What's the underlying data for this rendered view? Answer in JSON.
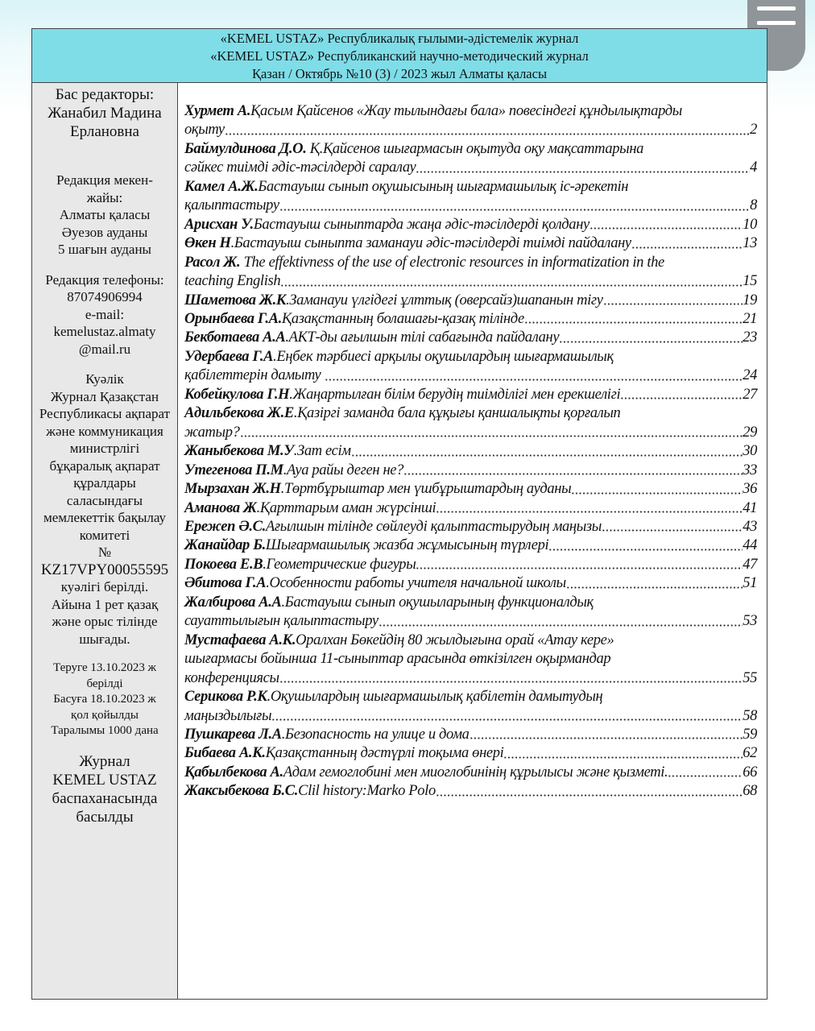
{
  "header": {
    "line1": "«KEMEL USTAZ» Республикалық ғылыми-әдістемелік журнал",
    "line2": "«KEMEL USTAZ» Республиканский научно-методический журнал",
    "line3": "Қазан / Октябрь  №10 (3) / 2023 жыл Алматы  қаласы"
  },
  "sidebar": {
    "editor": [
      "Бас редакторы:",
      "Жанабил Мадина",
      "Ерлановна"
    ],
    "address": [
      "Редакция мекен-",
      "жайы:",
      "Алматы қаласы",
      "Әуезов ауданы",
      "5 шағын ауданы"
    ],
    "contacts": [
      "Редакция телефоны:",
      "87074906994",
      "e-mail:",
      "kemelustaz.almaty",
      "@mail.ru"
    ],
    "certificate": [
      "Куәлік",
      "Журнал Қазақстан",
      "Республикасы ақпарат",
      "және коммуникация",
      "министрлігі",
      "бұқаралық ақпарат",
      "құралдары",
      "саласындағы",
      "мемлекеттік бақылау",
      "комитеті",
      "№",
      "KZ17VPY00055595",
      "куәлігі берілді.",
      "Айына 1 рет қазақ",
      "және орыс тілінде",
      "шығады."
    ],
    "print": [
      "Теруге 13.10.2023 ж",
      "берілді",
      "Басуға 18.10.2023 ж",
      "қол қойылды",
      "Таралымы 1000 дана"
    ],
    "printer": [
      "Журнал",
      "KEMEL USTAZ",
      "баспаханасында",
      "басылды"
    ]
  },
  "toc": [
    {
      "author": "Хурмет А.",
      "lines": [
        "Қасым Қайсенов «Жау тылындағы бала» повесіндегі құндылықтарды",
        "оқыту"
      ],
      "page": "2"
    },
    {
      "author": "Баймулдинова Д.О.",
      "lines": [
        " Қ.Қайсенов шығармасын оқытуда оқу мақсаттарына",
        "сәйкес тиімді әдіс-тәсілдерді саралау"
      ],
      "page": "4"
    },
    {
      "author": "Камел А.Ж.",
      "lines": [
        "Бастауыш сынып оқушысының шығармашылық іс-әрекетін",
        "қалыптастыру"
      ],
      "page": "8"
    },
    {
      "author": "Арисхан У.",
      "lines": [
        "Бастауыш сыныптарда жаңа әдіс-тәсілдерді қолдану"
      ],
      "page": "10"
    },
    {
      "author": "Өкен Н",
      "lines": [
        ".Бастауыш сыныпта заманауи әдіс-тәсілдерді тиімді пайдалану"
      ],
      "page": "13"
    },
    {
      "author": "Расол Ж.",
      "lines": [
        " The effektivness of the use of electronic resources in informatization in the",
        "teaching English"
      ],
      "page": "15"
    },
    {
      "author": "Шаметова Ж.К",
      "lines": [
        ".Заманауи үлгідегі ұлттық (оверсайз)шапанын тігу"
      ],
      "page": "19"
    },
    {
      "author": "Орынбаева Г.А.",
      "lines": [
        "Қазақстанның болашағы-қазақ тілінде"
      ],
      "page": "21"
    },
    {
      "author": "Бекботаева А.А",
      "lines": [
        ".АКТ-ды ағылшын тілі сабағында пайдалану"
      ],
      "page": "23"
    },
    {
      "author": "Удербаева Г.А",
      "lines": [
        ".Еңбек тәрбиесі арқылы оқушылардың шығармашылық",
        "қабілеттерін дамыту "
      ],
      "page": "24"
    },
    {
      "author": "Кобейкулова Г.Н",
      "lines": [
        ".Жаңартылған білім берудің тиімділігі мен ерекшелігі"
      ],
      "page": "27"
    },
    {
      "author": "Адильбекова Ж.Е",
      "lines": [
        ".Қазіргі заманда бала құқығы қаншалықты қорғалып",
        "жатыр?"
      ],
      "page": "29"
    },
    {
      "author": "Жаныбекова М.У",
      "lines": [
        ".Зат есім"
      ],
      "page": "30"
    },
    {
      "author": "Утегенова П.М",
      "lines": [
        ".Ауа райы деген не?"
      ],
      "page": "33"
    },
    {
      "author": "Мырзахан Ж.Н",
      "lines": [
        ".Төртбұрыштар мен үшбұрыштардың ауданы"
      ],
      "page": "36"
    },
    {
      "author": "Аманова Ж",
      "lines": [
        ".Қарттарым аман жүрсінші"
      ],
      "page": "41"
    },
    {
      "author": "Ережеп Ә.С.",
      "lines": [
        "Ағылшын тілінде сөйлеуді қалыптастырудың маңызы"
      ],
      "page": "43"
    },
    {
      "author": "Жанайдар Б.",
      "lines": [
        "Шығармашылық жазба жұмысының түрлері"
      ],
      "page": "44"
    },
    {
      "author": "Покоева Е.В",
      "lines": [
        ".Геометрические фигуры"
      ],
      "page": "47"
    },
    {
      "author": "Әбитова Г.А",
      "lines": [
        ".Особенности работы учителя начальной школы"
      ],
      "page": "51"
    },
    {
      "author": "Жалбирова А.А",
      "lines": [
        ".Бастауыш сынып оқушыларының функционалдық",
        "сауаттылығын қалыптастыру"
      ],
      "page": "53"
    },
    {
      "author": "Мустафаева А.К.",
      "lines": [
        "Оралхан Бөкейдің 80 жылдығына орай «Атау кере»",
        "шығармасы бойынша 11-сыныптар арасында өткізілген оқырмандар",
        "конференциясы"
      ],
      "page": "55"
    },
    {
      "author": "Серикова Р.К",
      "lines": [
        ".Оқушылардың шығармашылық қабілетін дамытудың",
        "маңыздылығы"
      ],
      "page": "58"
    },
    {
      "author": "Пушкарева Л.А",
      "lines": [
        ".Безопасность на улице и дома"
      ],
      "page": "59"
    },
    {
      "author": "Бибаева А.К.",
      "lines": [
        "Қазақстанның дәстүрлі тоқыма өнері"
      ],
      "page": "62"
    },
    {
      "author": "Қабылбекова А.",
      "lines": [
        "Адам гемоглобині мен миоглобинінің құрылысы және қызметі."
      ],
      "page": "66"
    },
    {
      "author": "Жаксыбекова Б.С.",
      "lines": [
        "Clil history:Marko Polo"
      ],
      "page": "68"
    }
  ],
  "icons": {
    "menu": "hamburger-menu-icon"
  },
  "colors": {
    "header_bg": "#7fdde8",
    "sidebar_bg": "#e8e8e8"
  }
}
